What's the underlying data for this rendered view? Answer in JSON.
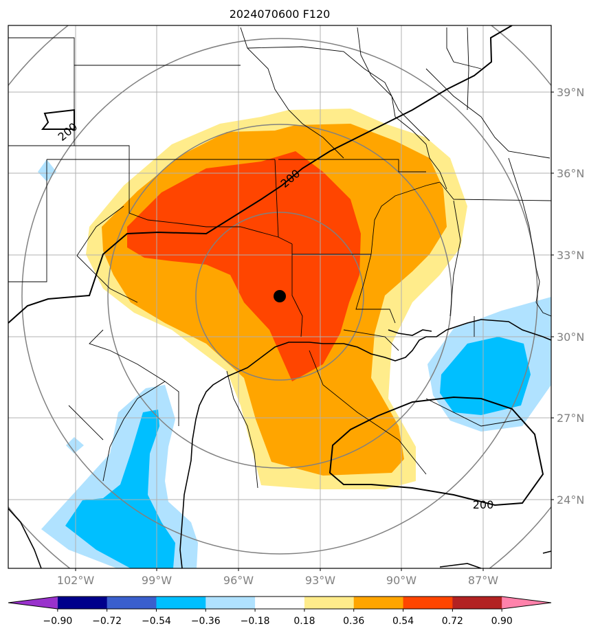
{
  "title": "2024070600 F120",
  "map": {
    "lat_labels": [
      "39°N",
      "36°N",
      "33°N",
      "30°N",
      "27°N",
      "24°N"
    ],
    "lon_labels": [
      "102°W",
      "99°W",
      "96°W",
      "93°W",
      "90°W",
      "87°W"
    ],
    "contour_labels": [
      "200",
      "200",
      "200"
    ],
    "center_marker": "black-dot",
    "colors": {
      "frame": "#000000",
      "gridlines": "#b0b0b0",
      "range_rings": "#808080",
      "borders": "#000000",
      "contours": "#000000"
    }
  },
  "colorbar": {
    "levels": [
      "−0.90",
      "−0.72",
      "−0.54",
      "−0.36",
      "−0.18",
      "0.18",
      "0.36",
      "0.54",
      "0.72",
      "0.90"
    ],
    "colors": [
      "#9932cc",
      "#00008b",
      "#3a5fcd",
      "#00bfff",
      "#b0e2ff",
      "#ffffff",
      "#ffec8b",
      "#ffa500",
      "#ff4500",
      "#b22222",
      "#ff82ab"
    ],
    "extend": "both"
  }
}
